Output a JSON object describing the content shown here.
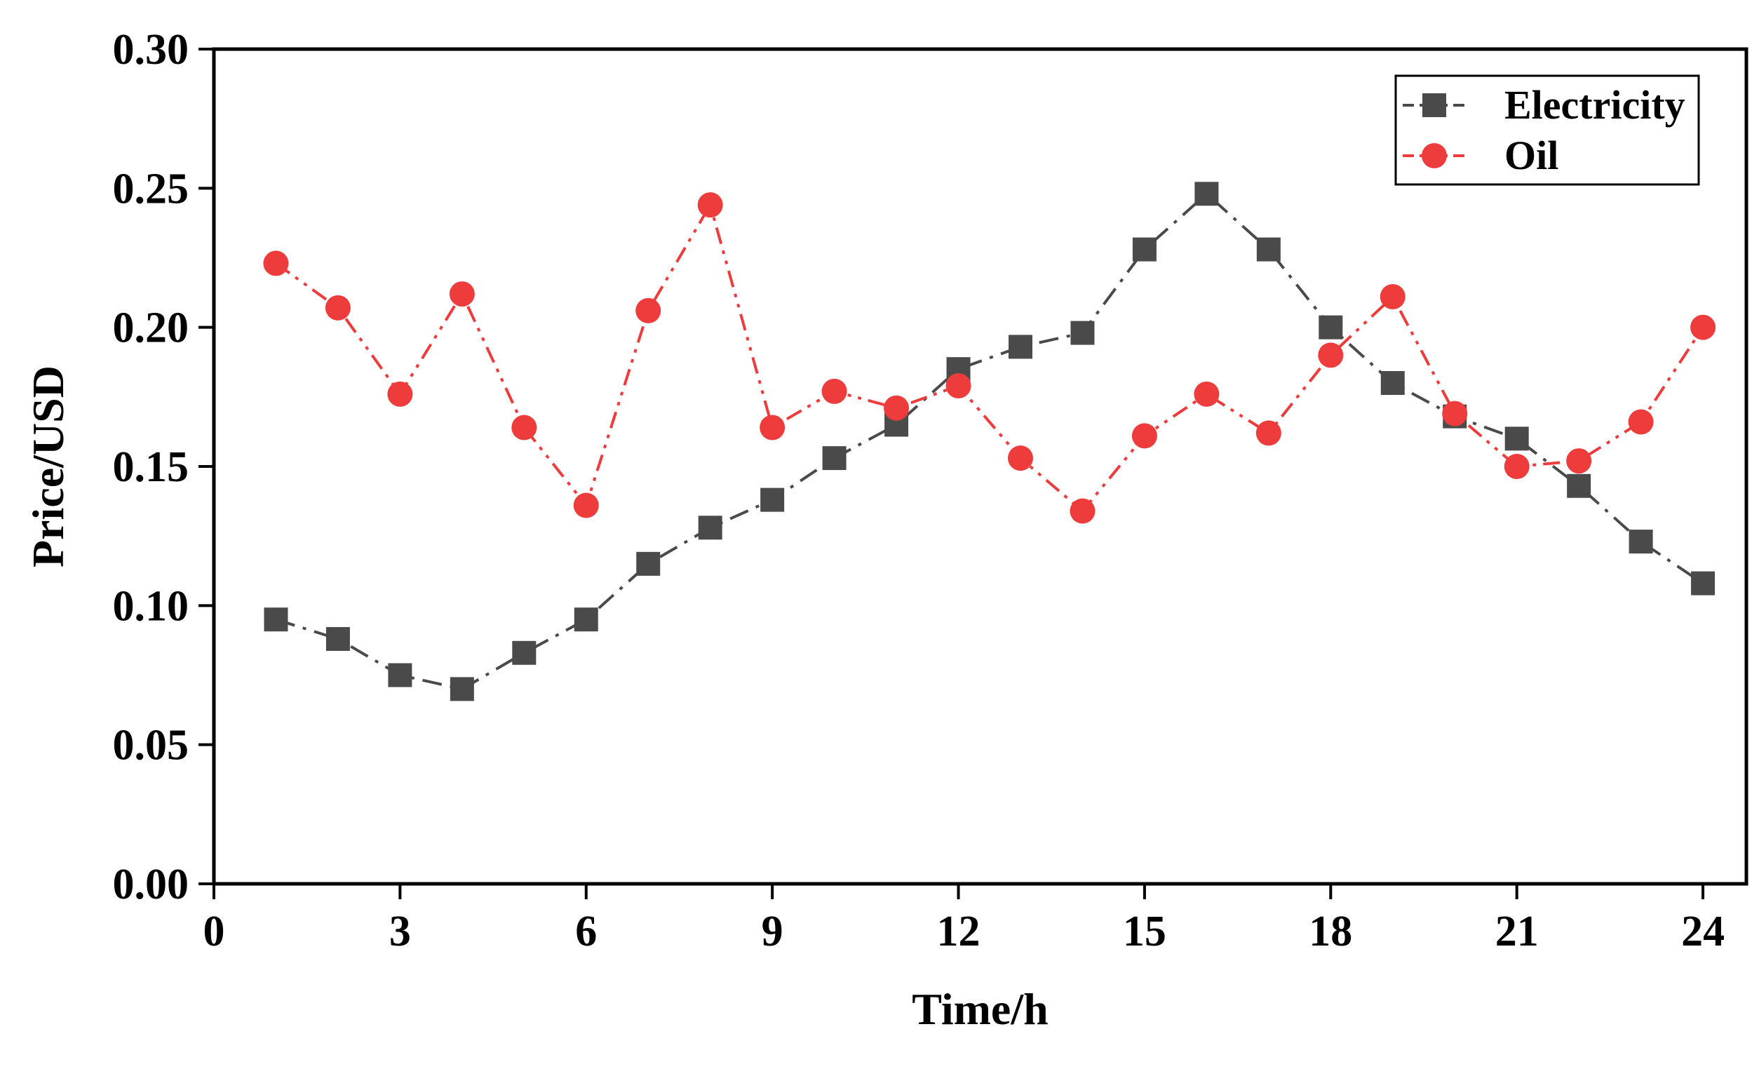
{
  "chart_data": {
    "type": "line",
    "title": "",
    "xlabel": "Time/h",
    "ylabel": "Price/USD",
    "xlim": [
      0,
      24.7
    ],
    "ylim": [
      0,
      0.3
    ],
    "xticks": [
      "0",
      "3",
      "6",
      "9",
      "12",
      "15",
      "18",
      "21",
      "24"
    ],
    "xtick_values": [
      0,
      3,
      6,
      9,
      12,
      15,
      18,
      21,
      24
    ],
    "yticks": [
      "0.00",
      "0.05",
      "0.10",
      "0.15",
      "0.20",
      "0.25",
      "0.30"
    ],
    "ytick_values": [
      0,
      0.05,
      0.1,
      0.15,
      0.2,
      0.25,
      0.3
    ],
    "grid": false,
    "legend_position": "top-right",
    "x": [
      1,
      2,
      3,
      4,
      5,
      6,
      7,
      8,
      9,
      10,
      11,
      12,
      13,
      14,
      15,
      16,
      17,
      18,
      19,
      20,
      21,
      22,
      23,
      24
    ],
    "series": [
      {
        "name": "Electricity",
        "color": "#4a4a4a",
        "marker": "square",
        "line_style": "dash-dot",
        "values": [
          0.095,
          0.088,
          0.075,
          0.07,
          0.083,
          0.095,
          0.115,
          0.128,
          0.138,
          0.153,
          0.165,
          0.185,
          0.193,
          0.198,
          0.228,
          0.248,
          0.228,
          0.2,
          0.18,
          0.168,
          0.16,
          0.143,
          0.123,
          0.108
        ]
      },
      {
        "name": "Oil",
        "color": "#ee3c3c",
        "marker": "circle",
        "line_style": "dash-dot-dot",
        "values": [
          0.223,
          0.207,
          0.176,
          0.212,
          0.164,
          0.136,
          0.206,
          0.244,
          0.164,
          0.177,
          0.171,
          0.179,
          0.153,
          0.134,
          0.161,
          0.176,
          0.162,
          0.19,
          0.211,
          0.169,
          0.15,
          0.152,
          0.166,
          0.2
        ]
      }
    ]
  }
}
